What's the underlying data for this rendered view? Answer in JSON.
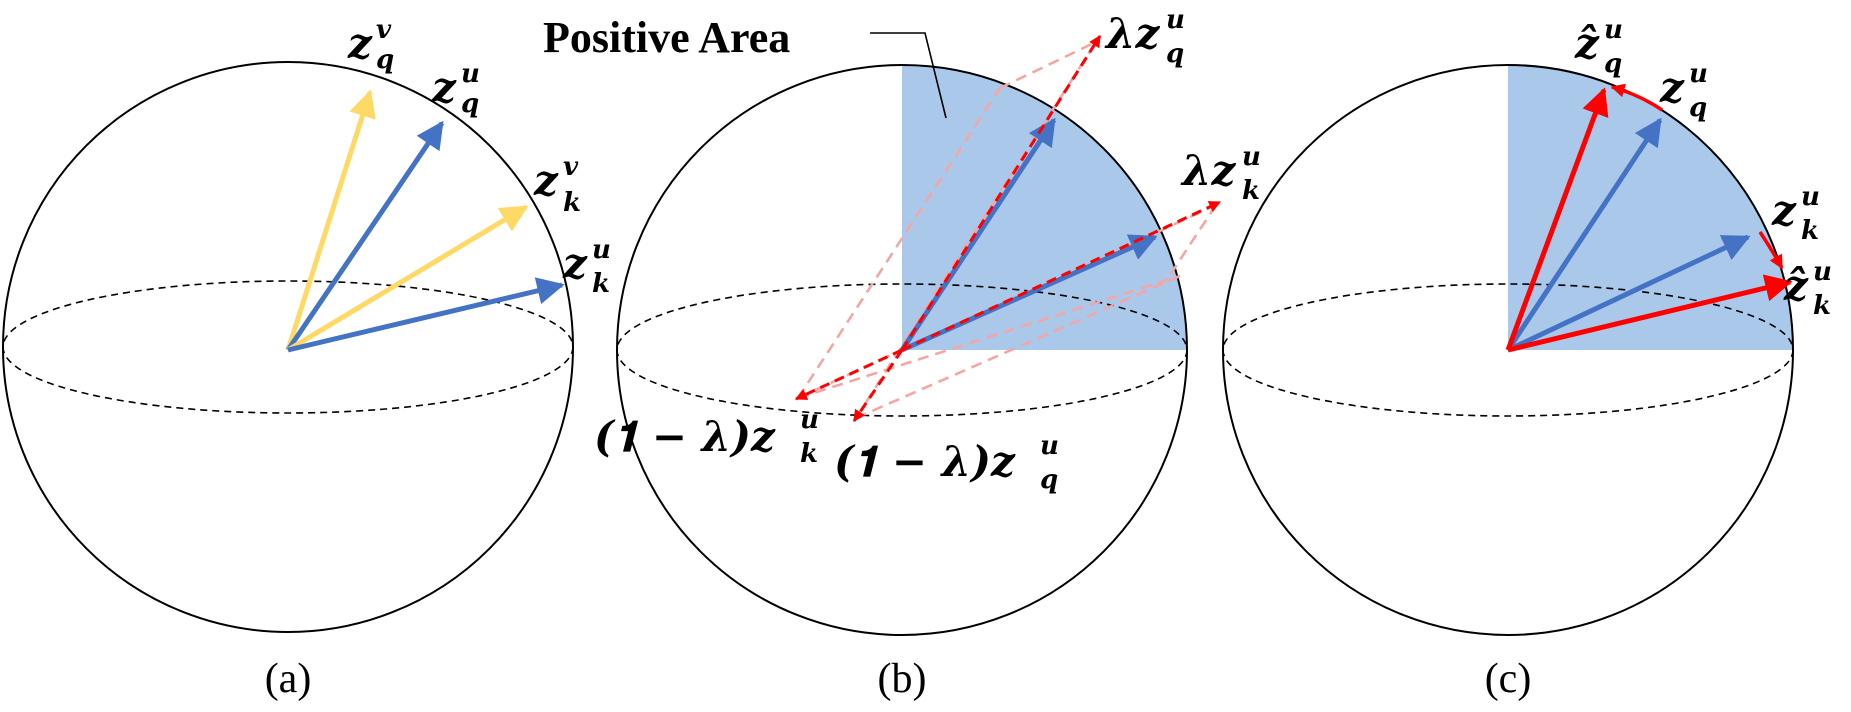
{
  "colors": {
    "blue_vector": "#4472C4",
    "yellow_vector": "#FFD966",
    "red_vector": "#FF0000",
    "light_red_dashed": "#F4A6A6",
    "positive_area": "#A9C8EA",
    "outline": "#000000"
  },
  "panels": [
    {
      "caption": "(a)",
      "labels": {
        "z_q_v": {
          "base": "z",
          "sup": "v",
          "sub": "q"
        },
        "z_q_u": {
          "base": "z",
          "sup": "u",
          "sub": "q"
        },
        "z_k_v": {
          "base": "z",
          "sup": "v",
          "sub": "k"
        },
        "z_k_u": {
          "base": "z",
          "sup": "u",
          "sub": "k"
        }
      }
    },
    {
      "caption": "(b)",
      "title": "Positive Area",
      "labels": {
        "lambda_z_q": {
          "prefix": "λ",
          "base": "z",
          "sup": "u",
          "sub": "q"
        },
        "lambda_z_k": {
          "prefix": "λ",
          "base": "z",
          "sup": "u",
          "sub": "k"
        },
        "one_minus_lambda_z_k": {
          "prefix": "(𝟏 − λ)",
          "base": "z",
          "sup": "u",
          "sub": "k"
        },
        "one_minus_lambda_z_q": {
          "prefix": "(𝟏 − λ)",
          "base": "z",
          "sup": "u",
          "sub": "q"
        }
      }
    },
    {
      "caption": "(c)",
      "labels": {
        "z_hat_q": {
          "base": "ẑ",
          "sup": "u",
          "sub": "q"
        },
        "z_q_u": {
          "base": "z",
          "sup": "u",
          "sub": "q"
        },
        "z_k_u": {
          "base": "z",
          "sup": "u",
          "sub": "k"
        },
        "z_hat_k": {
          "base": "ẑ",
          "sup": "u",
          "sub": "k"
        }
      }
    }
  ]
}
